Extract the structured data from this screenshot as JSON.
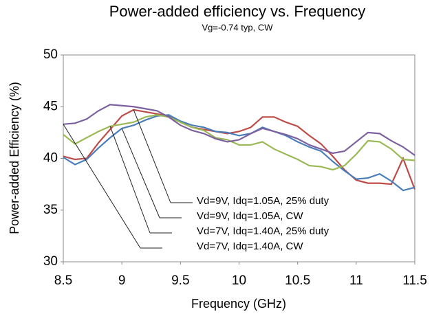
{
  "chart_data": {
    "type": "line",
    "title": "Power-added efficiency vs. Frequency",
    "subtitle": "Vg=-0.74 typ, CW",
    "x_label": "Frequency (GHz)",
    "y_label": "Power-added Efficiency (%)",
    "x": [
      8.5,
      8.6,
      8.7,
      8.8,
      8.9,
      9.0,
      9.1,
      9.2,
      9.3,
      9.4,
      9.5,
      9.6,
      9.7,
      9.8,
      9.9,
      10.0,
      10.1,
      10.2,
      10.3,
      10.4,
      10.5,
      10.6,
      10.7,
      10.8,
      10.9,
      11.0,
      11.1,
      11.2,
      11.3,
      11.4,
      11.5
    ],
    "series": [
      {
        "name": "Vd=9V, Idq=1.05A, 25% duty",
        "color": "#be4b48",
        "values": [
          40.2,
          39.9,
          40.0,
          41.5,
          42.8,
          44.1,
          44.7,
          44.5,
          44.3,
          44.1,
          43.5,
          43.0,
          42.8,
          42.6,
          42.4,
          42.6,
          43.0,
          44.0,
          44.0,
          43.5,
          43.1,
          42.2,
          41.4,
          40.2,
          38.9,
          37.9,
          37.6,
          37.6,
          37.5,
          40.0,
          37.0
        ]
      },
      {
        "name": "Vd=9V, Idq=1.05A, CW",
        "color": "#4a7ebb",
        "values": [
          40.1,
          39.4,
          39.9,
          41.0,
          42.0,
          42.9,
          43.2,
          43.7,
          44.1,
          44.2,
          43.6,
          43.2,
          43.0,
          42.6,
          42.5,
          42.2,
          42.4,
          43.0,
          42.6,
          42.2,
          41.6,
          41.1,
          40.7,
          39.7,
          38.8,
          38.0,
          38.1,
          38.5,
          37.8,
          36.9,
          37.2
        ]
      },
      {
        "name": "Vd=7V, Idq=1.40A, 25% duty",
        "color": "#98b954",
        "values": [
          42.3,
          41.4,
          42.0,
          42.6,
          43.1,
          43.3,
          43.5,
          44.0,
          44.2,
          44.0,
          43.5,
          43.0,
          42.7,
          42.0,
          41.8,
          41.3,
          41.3,
          41.6,
          40.9,
          40.4,
          39.9,
          39.3,
          39.2,
          38.9,
          39.3,
          40.4,
          41.7,
          41.6,
          40.9,
          39.9,
          39.8
        ]
      },
      {
        "name": "Vd=7V, Idq=1.40A, CW",
        "color": "#7d60a0",
        "values": [
          43.3,
          43.4,
          43.8,
          44.6,
          45.2,
          45.1,
          45.0,
          44.8,
          44.6,
          44.0,
          43.2,
          42.7,
          42.4,
          41.9,
          41.6,
          41.8,
          42.4,
          42.9,
          42.6,
          42.3,
          41.9,
          41.3,
          40.9,
          40.5,
          40.7,
          41.6,
          42.5,
          42.4,
          41.7,
          41.1,
          40.3
        ]
      }
    ],
    "xlim": [
      8.5,
      11.5
    ],
    "xticks": [
      8.5,
      9,
      9.5,
      10,
      10.5,
      11,
      11.5
    ],
    "ylim": [
      30,
      50
    ],
    "yticks": [
      30,
      35,
      40,
      45,
      50
    ],
    "grid": false
  }
}
